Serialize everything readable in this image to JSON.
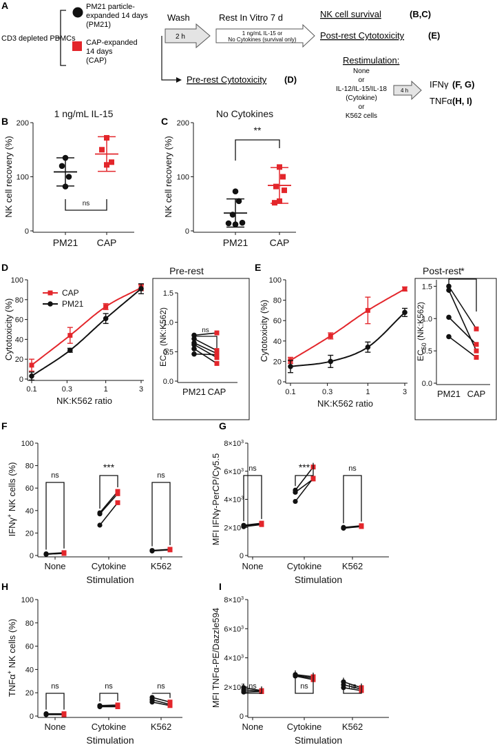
{
  "figure": {
    "colors": {
      "pm21": "#111111",
      "cap": "#e3262b",
      "arrow_fill": "#e4e4e4"
    },
    "panel_labels": [
      "A",
      "B",
      "C",
      "D",
      "E",
      "F",
      "G",
      "H",
      "I"
    ],
    "schematic": {
      "start": "CD3 depleted PBMCs",
      "pm21_lines": [
        "PM21 particle-",
        "expanded 14 days",
        "(PM21)"
      ],
      "cap_lines": [
        "CAP-expanded",
        "14 days",
        "(CAP)"
      ],
      "wash": "Wash",
      "wash_time": "2 h",
      "rest": "Rest In Vitro 7 d",
      "rest_cond_1": "1 ng/mL IL-15 or",
      "rest_cond_2": "No Cytokines (survival only)",
      "survival": "NK cell survival",
      "survival_ref": "(B,C)",
      "post_rest": "Post-rest Cytotoxicity",
      "post_rest_ref": "(E)",
      "pre_rest": "Pre-rest Cytotoxicity",
      "pre_rest_ref": "(D)",
      "restim": "Restimulation:",
      "restim_opts": [
        "None",
        "or",
        "IL-12/IL-15/IL-18",
        "(Cytokine)",
        "or",
        "K562 cells"
      ],
      "restim_time": "4 h",
      "ifng": "IFNγ",
      "ifng_ref": "(F, G)",
      "tnfa": "TNFα",
      "tnfa_ref": "(H, I)"
    }
  },
  "chart_data": [
    {
      "id": "B",
      "type": "scatter",
      "title": "1 ng/mL IL-15",
      "ylabel": "NK cell recovery (%)",
      "ylim": [
        0,
        200
      ],
      "yticks": [
        0,
        100,
        200
      ],
      "categories": [
        "PM21",
        "CAP"
      ],
      "series": [
        {
          "name": "PM21",
          "values": [
            135,
            120,
            100,
            82
          ],
          "mean": 109,
          "sd": 26
        },
        {
          "name": "CAP",
          "values": [
            172,
            150,
            127,
            122
          ],
          "mean": 142,
          "sd": 32
        }
      ],
      "significance": "ns"
    },
    {
      "id": "C",
      "type": "scatter",
      "title": "No Cytokines",
      "ylabel": "NK cell recovery (%)",
      "ylim": [
        0,
        200
      ],
      "yticks": [
        0,
        100,
        200
      ],
      "categories": [
        "PM21",
        "CAP"
      ],
      "series": [
        {
          "name": "PM21",
          "values": [
            73,
            55,
            30,
            15,
            14,
            12
          ],
          "mean": 33,
          "sd": 26
        },
        {
          "name": "CAP",
          "values": [
            118,
            100,
            82,
            75,
            55,
            52
          ],
          "mean": 84,
          "sd": 33
        }
      ],
      "significance": "**"
    },
    {
      "id": "D1",
      "type": "line",
      "title": "Pre-rest",
      "xlabel": "NK:K562 ratio",
      "ylabel": "Cytotoxicity (%)",
      "xscale": "log",
      "xticks": [
        0.1,
        0.3,
        1,
        3
      ],
      "xtick_labels": [
        "0.1",
        "0.3",
        "1",
        "3"
      ],
      "ylim": [
        0,
        100
      ],
      "yticks": [
        0,
        20,
        40,
        60,
        80,
        100
      ],
      "legend": {
        "position": "top-left",
        "entries": [
          "CAP",
          "PM21"
        ]
      },
      "series": [
        {
          "name": "CAP",
          "x": [
            0.1,
            0.33,
            1,
            3
          ],
          "y": [
            14,
            44,
            73,
            92
          ],
          "err": [
            6,
            8,
            3,
            3
          ]
        },
        {
          "name": "PM21",
          "x": [
            0.1,
            0.33,
            1,
            3
          ],
          "y": [
            3,
            29,
            61,
            91
          ],
          "err": [
            4,
            2,
            5,
            5
          ]
        }
      ]
    },
    {
      "id": "D2",
      "type": "scatter",
      "ylabel": "EC50 (NK:K562)",
      "ylim": [
        0,
        1.5
      ],
      "yticks": [
        0,
        0.5,
        1.0,
        1.5
      ],
      "ytick_labels": [
        "0.0",
        "0.5",
        "1.0",
        "1.5"
      ],
      "categories": [
        "PM21",
        "CAP"
      ],
      "pairs": [
        [
          0.78,
          0.82
        ],
        [
          0.72,
          0.52
        ],
        [
          0.65,
          0.47
        ],
        [
          0.62,
          0.4
        ],
        [
          0.55,
          0.3
        ],
        [
          0.46,
          0.45
        ]
      ],
      "significance": "ns"
    },
    {
      "id": "E1",
      "type": "line",
      "title": "Post-rest",
      "xlabel": "NK:K562 ratio",
      "ylabel": "Cytotoxicity (%)",
      "xscale": "log",
      "xticks": [
        0.1,
        0.3,
        1,
        3
      ],
      "xtick_labels": [
        "0.1",
        "0.3",
        "1",
        "3"
      ],
      "ylim": [
        0,
        100
      ],
      "yticks": [
        0,
        20,
        40,
        60,
        80,
        100
      ],
      "series": [
        {
          "name": "CAP",
          "x": [
            0.1,
            0.33,
            1,
            3
          ],
          "y": [
            21,
            45,
            70,
            91
          ],
          "err": [
            3,
            3,
            13,
            2
          ]
        },
        {
          "name": "PM21",
          "x": [
            0.1,
            0.33,
            1,
            3
          ],
          "y": [
            15,
            20,
            34,
            68
          ],
          "err": [
            6,
            6,
            5,
            4
          ]
        }
      ]
    },
    {
      "id": "E2",
      "type": "scatter",
      "ylabel": "EC50 (NK:K562)",
      "ylim": [
        0,
        1.6
      ],
      "yticks": [
        0,
        0.5,
        1.0,
        1.5
      ],
      "ytick_labels": [
        "0.0",
        "0.5",
        "1.0",
        "1.5"
      ],
      "categories": [
        "PM21",
        "CAP"
      ],
      "pairs": [
        [
          1.5,
          0.84
        ],
        [
          1.44,
          0.5
        ],
        [
          1.02,
          0.6
        ],
        [
          0.72,
          0.4
        ]
      ],
      "significance": "*"
    },
    {
      "id": "F",
      "type": "line",
      "xlabel": "Stimulation",
      "ylabel": "IFNγ+ NK cells (%)",
      "ylim": [
        0,
        100
      ],
      "yticks": [
        0,
        20,
        40,
        60,
        80,
        100
      ],
      "categories": [
        "None",
        "Cytokine",
        "K562"
      ],
      "pairs": [
        [
          [
            1.5,
            2.5
          ],
          [
            1.2,
            1.8
          ],
          [
            1.0,
            2.0
          ]
        ],
        [
          [
            38,
            57
          ],
          [
            37,
            55
          ],
          [
            27,
            47
          ]
        ],
        [
          [
            4.5,
            5.5
          ],
          [
            4.3,
            5.2
          ],
          [
            4.0,
            5.0
          ]
        ]
      ],
      "significance": [
        "ns",
        "***",
        "ns"
      ]
    },
    {
      "id": "G",
      "type": "line",
      "xlabel": "Stimulation",
      "ylabel": "MFI IFNγ-PerCP/Cy5.5",
      "ylim": [
        0,
        8000
      ],
      "yticks": [
        0,
        2000,
        4000,
        6000,
        8000
      ],
      "ytick_labels": [
        "0",
        "2×10³",
        "4×10³",
        "6×10³",
        "8×10³"
      ],
      "categories": [
        "None",
        "Cytokine",
        "K562"
      ],
      "pairs": [
        [
          [
            2150,
            2300
          ],
          [
            2100,
            2250
          ],
          [
            2050,
            2200
          ]
        ],
        [
          [
            4650,
            6300
          ],
          [
            4500,
            5450
          ],
          [
            3850,
            5500
          ]
        ],
        [
          [
            2000,
            2120
          ],
          [
            1960,
            2080
          ],
          [
            1940,
            2060
          ]
        ]
      ],
      "significance": [
        "ns",
        "***",
        "ns"
      ]
    },
    {
      "id": "H",
      "type": "line",
      "xlabel": "Stimulation",
      "ylabel": "TNFα+ NK cells (%)",
      "ylim": [
        0,
        100
      ],
      "yticks": [
        0,
        20,
        40,
        60,
        80,
        100
      ],
      "categories": [
        "None",
        "Cytokine",
        "K562"
      ],
      "pairs": [
        [
          [
            2,
            2
          ],
          [
            1.6,
            1.5
          ],
          [
            1.2,
            1.2
          ]
        ],
        [
          [
            9,
            9.5
          ],
          [
            8.5,
            8.5
          ],
          [
            8,
            8
          ]
        ],
        [
          [
            16,
            12
          ],
          [
            14,
            10
          ],
          [
            12,
            9
          ]
        ]
      ],
      "significance": [
        "ns",
        "ns",
        "ns"
      ]
    },
    {
      "id": "I",
      "type": "line",
      "xlabel": "Stimulation",
      "ylabel": "MFI TNFα-PE/Dazzle594",
      "ylim": [
        0,
        8000
      ],
      "yticks": [
        0,
        2000,
        4000,
        6000,
        8000
      ],
      "ytick_labels": [
        "0",
        "2×10³",
        "4×10³",
        "6×10³",
        "8×10³"
      ],
      "categories": [
        "None",
        "Cytokine",
        "K562"
      ],
      "pairs": [
        [
          [
            1950,
            1750
          ],
          [
            1800,
            1700
          ],
          [
            1650,
            1680
          ]
        ],
        [
          [
            2850,
            2700
          ],
          [
            2800,
            2600
          ],
          [
            2750,
            2500
          ]
        ],
        [
          [
            2350,
            1950
          ],
          [
            2150,
            1850
          ],
          [
            1950,
            1750
          ]
        ]
      ],
      "significance": [
        "ns",
        "ns",
        "ns"
      ]
    }
  ]
}
